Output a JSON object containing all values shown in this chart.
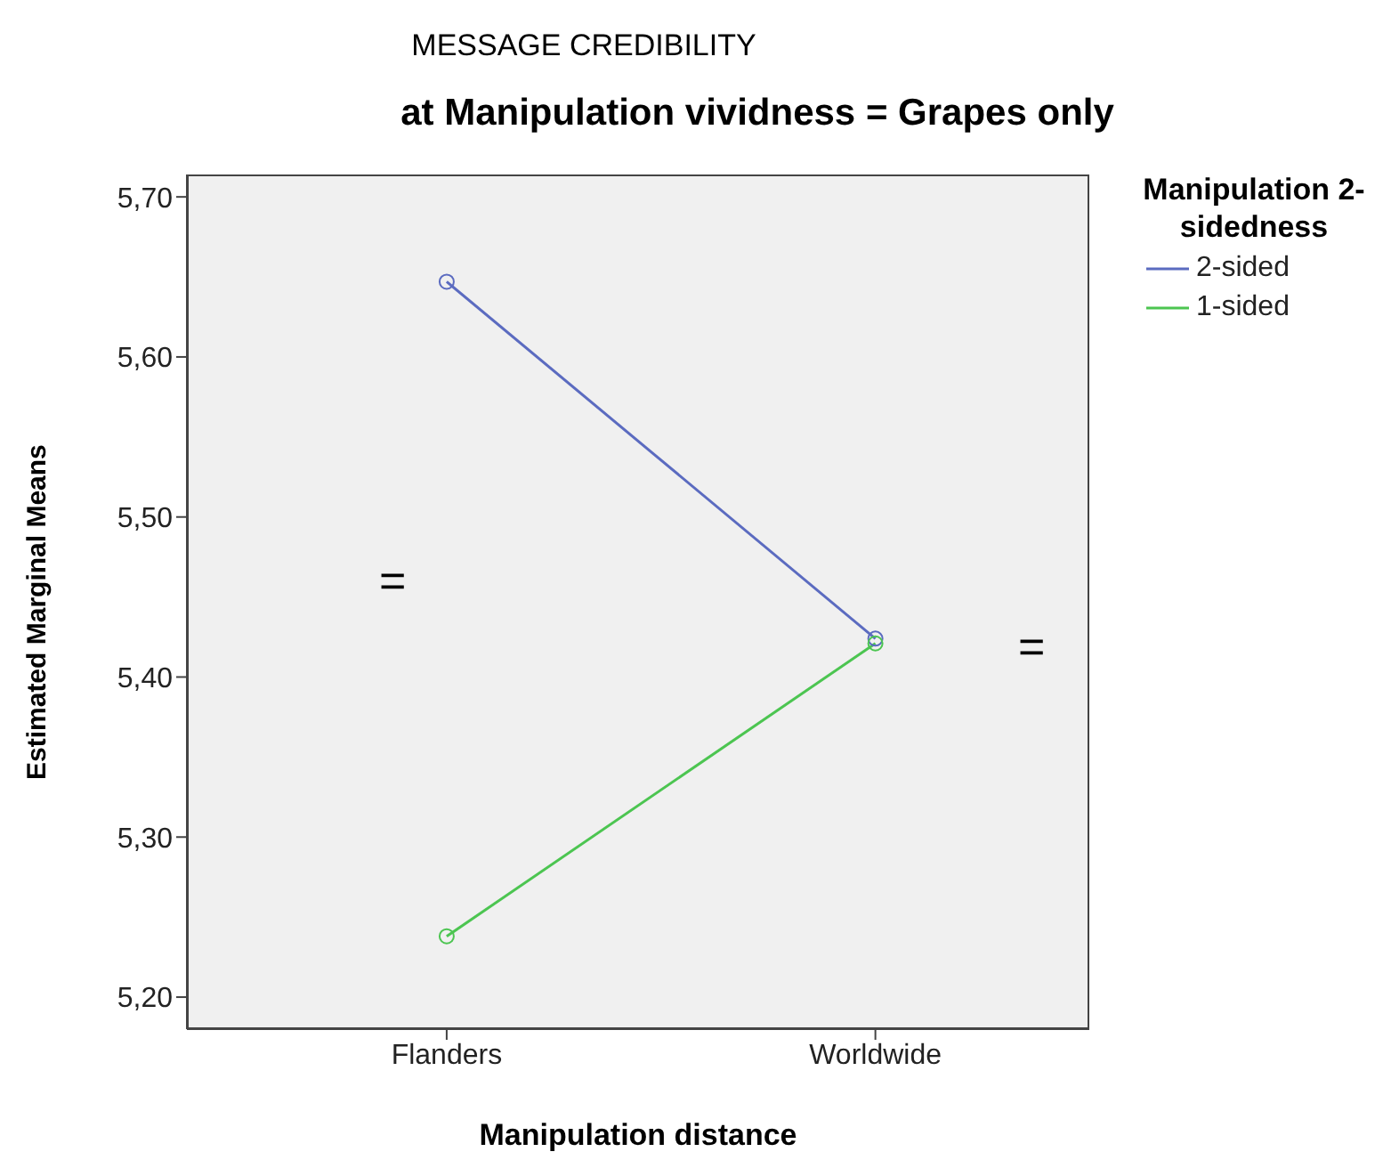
{
  "chart_data": {
    "type": "line",
    "title": "MESSAGE CREDIBILITY",
    "subtitle": "at Manipulation vividness = Grapes only",
    "xlabel": "Manipulation distance",
    "ylabel": "Estimated Marginal Means",
    "legend_title": "Manipulation 2-sidedness",
    "categories": [
      "Flanders",
      "Worldwide"
    ],
    "series": [
      {
        "name": "2-sided",
        "color": "#5b6bc0",
        "values": [
          5.647,
          5.424
        ]
      },
      {
        "name": "1-sided",
        "color": "#4cc551",
        "values": [
          5.238,
          5.421
        ]
      }
    ],
    "ylim": [
      5.18,
      5.714
    ],
    "yticks": [
      {
        "value": 5.2,
        "label": "5,20"
      },
      {
        "value": 5.3,
        "label": "5,30"
      },
      {
        "value": 5.4,
        "label": "5,40"
      },
      {
        "value": 5.5,
        "label": "5,50"
      },
      {
        "value": 5.6,
        "label": "5,60"
      },
      {
        "value": 5.7,
        "label": "5,70"
      }
    ],
    "annotations": [
      "=",
      "="
    ],
    "grid": false,
    "legend": "top right",
    "marker": "circle",
    "line_style": "solid"
  }
}
